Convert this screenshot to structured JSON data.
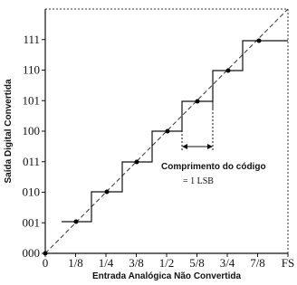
{
  "y_axis": {
    "title": "Saída Digital Convertida",
    "labels": [
      "000",
      "001",
      "010",
      "011",
      "100",
      "101",
      "110",
      "111"
    ]
  },
  "x_axis": {
    "title": "Entrada Analógica Não Convertida",
    "labels": [
      "0",
      "1/8",
      "1/4",
      "3/8",
      "1/2",
      "5/8",
      "3/4",
      "7/8",
      "FS"
    ]
  },
  "annotation": {
    "title": "Comprimento do código",
    "value": "= 1 LSB"
  }
}
